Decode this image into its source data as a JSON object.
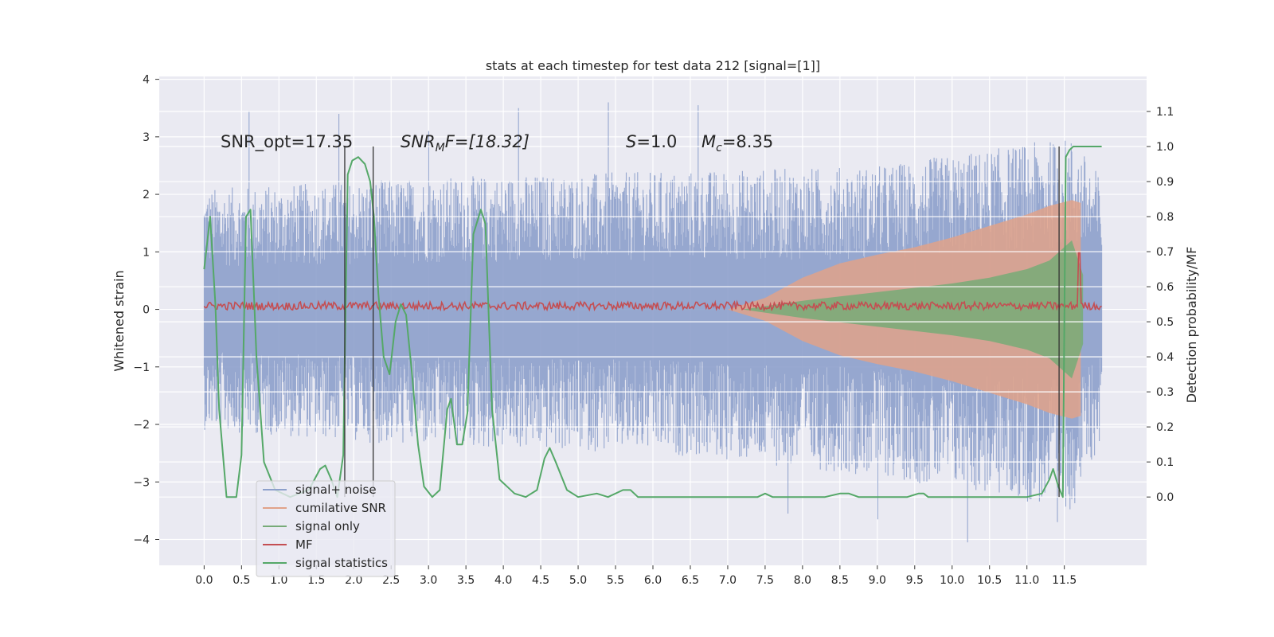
{
  "chart_data": {
    "type": "line",
    "title": "stats at each timestep for test data 212 [signal=[1]]",
    "xlabel": "",
    "ylabel": "Whitened strain",
    "y2label": "Detection probability/MF",
    "xlim": [
      -0.6,
      12.6
    ],
    "ylim": [
      -4.45,
      4.05
    ],
    "y2lim": [
      -0.195,
      1.2
    ],
    "xticks": [
      "0.0",
      "0.5",
      "1.0",
      "1.5",
      "2.0",
      "2.5",
      "3.0",
      "3.5",
      "4.0",
      "4.5",
      "5.0",
      "5.5",
      "6.0",
      "6.5",
      "7.0",
      "7.5",
      "8.0",
      "8.5",
      "9.0",
      "9.5",
      "10.0",
      "10.5",
      "11.0",
      "11.5"
    ],
    "yticks": [
      "4",
      "3",
      "2",
      "1",
      "0",
      "−1",
      "−2",
      "−3",
      "−4"
    ],
    "y2ticks": [
      "1.1",
      "1.0",
      "0.9",
      "0.8",
      "0.7",
      "0.6",
      "0.5",
      "0.4",
      "0.3",
      "0.2",
      "0.1",
      "0.0"
    ],
    "grid": true,
    "legend_position": "bottom-left",
    "annotations": {
      "snr_opt": "SNR_opt=17.35",
      "snr_mf_main": "SNR",
      "snr_mf_sub": "M",
      "snr_mf_rest": "F=[18.32]",
      "s_main": "S",
      "s_rest": "=1.0",
      "mc_main": "M",
      "mc_sub": "c",
      "mc_rest": "=8.35"
    },
    "vertical_lines_x": [
      1.88,
      2.26,
      11.43
    ],
    "series": [
      {
        "name": "signal+ noise",
        "color": "#8da0cb",
        "envelope": [
          [
            0.0,
            2.1,
            -2.1
          ],
          [
            3.0,
            2.3,
            -2.4
          ],
          [
            6.0,
            2.4,
            -2.5
          ],
          [
            9.0,
            2.5,
            -2.9
          ],
          [
            11.6,
            3.0,
            -3.5
          ],
          [
            12.0,
            2.3,
            -2.3
          ]
        ],
        "peaks_y": [
          3.45,
          3.4,
          3.1,
          3.5,
          3.6,
          3.55,
          -3.55,
          -3.65,
          -4.05,
          -3.7
        ]
      },
      {
        "name": "cumilative SNR",
        "color": "#e1a28a",
        "x": [
          7.0,
          7.5,
          8.0,
          8.5,
          9.0,
          9.5,
          10.0,
          10.5,
          11.0,
          11.3,
          11.6,
          11.72
        ],
        "upper": [
          0.0,
          0.2,
          0.55,
          0.8,
          0.95,
          1.08,
          1.25,
          1.45,
          1.65,
          1.8,
          1.9,
          1.85
        ],
        "lower": [
          0.0,
          -0.2,
          -0.55,
          -0.8,
          -0.95,
          -1.08,
          -1.25,
          -1.45,
          -1.65,
          -1.8,
          -1.9,
          -1.85
        ]
      },
      {
        "name": "signal only",
        "color": "#77ab77",
        "x": [
          7.2,
          8.0,
          9.0,
          10.0,
          10.5,
          11.0,
          11.3,
          11.6,
          11.75
        ],
        "upper": [
          0.0,
          0.15,
          0.3,
          0.45,
          0.55,
          0.7,
          0.85,
          1.2,
          0.6
        ],
        "lower": [
          0.0,
          -0.15,
          -0.3,
          -0.45,
          -0.55,
          -0.7,
          -0.85,
          -1.2,
          -0.6
        ]
      },
      {
        "name": "MF",
        "color": "#c44e52",
        "level": 0.06,
        "spike": [
          11.7,
          1.0
        ]
      },
      {
        "name": "signal statistics",
        "color": "#55a868",
        "x": [
          0.0,
          0.08,
          0.15,
          0.2,
          0.3,
          0.36,
          0.43,
          0.5,
          0.56,
          0.62,
          0.7,
          0.8,
          0.95,
          1.15,
          1.4,
          1.55,
          1.62,
          1.7,
          1.78,
          1.86,
          1.92,
          1.98,
          2.06,
          2.15,
          2.22,
          2.27,
          2.33,
          2.4,
          2.48,
          2.56,
          2.63,
          2.7,
          2.78,
          2.86,
          2.94,
          3.05,
          3.15,
          3.25,
          3.3,
          3.38,
          3.45,
          3.52,
          3.6,
          3.7,
          3.76,
          3.85,
          3.95,
          4.0,
          4.15,
          4.3,
          4.45,
          4.55,
          4.62,
          4.7,
          4.85,
          5.0,
          5.25,
          5.4,
          5.6,
          5.7,
          5.8,
          6.0,
          6.5,
          7.0,
          7.4,
          7.5,
          7.6,
          8.3,
          8.5,
          8.62,
          8.75,
          9.4,
          9.55,
          9.62,
          9.68,
          10.0,
          11.0,
          11.2,
          11.3,
          11.35,
          11.42,
          11.48,
          11.52,
          11.57,
          11.62,
          11.68,
          11.73,
          11.78,
          12.0
        ],
        "y": [
          0.65,
          0.8,
          0.55,
          0.25,
          0.0,
          0.0,
          0.0,
          0.12,
          0.8,
          0.82,
          0.4,
          0.1,
          0.02,
          0.0,
          0.02,
          0.08,
          0.09,
          0.05,
          0.0,
          0.12,
          0.92,
          0.96,
          0.97,
          0.95,
          0.9,
          0.8,
          0.58,
          0.4,
          0.35,
          0.5,
          0.55,
          0.52,
          0.35,
          0.15,
          0.03,
          0.0,
          0.02,
          0.25,
          0.28,
          0.15,
          0.15,
          0.24,
          0.75,
          0.82,
          0.78,
          0.25,
          0.05,
          0.04,
          0.01,
          0.0,
          0.02,
          0.11,
          0.14,
          0.1,
          0.02,
          0.0,
          0.01,
          0.0,
          0.02,
          0.02,
          0.0,
          0.0,
          0.0,
          0.0,
          0.0,
          0.01,
          0.0,
          0.0,
          0.01,
          0.01,
          0.0,
          0.0,
          0.01,
          0.01,
          0.0,
          0.0,
          0.0,
          0.01,
          0.05,
          0.08,
          0.03,
          0.0,
          0.97,
          0.99,
          1.0,
          1.0,
          1.0,
          1.0,
          1.0
        ]
      }
    ]
  }
}
